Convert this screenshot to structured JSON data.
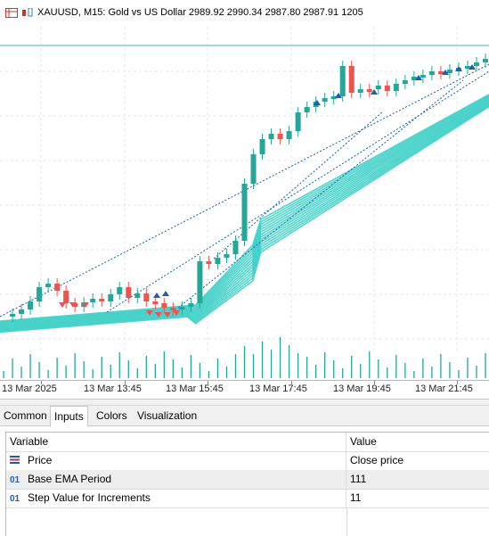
{
  "window": {
    "title": "XAUUSD, M15:  Gold vs US Dollar  2989.92 2990.34 2987.80 2987.91  1205",
    "accent_color": "#2e86ab"
  },
  "icons": {
    "window_icon": "grid-window-icon",
    "chart_type_icon": "candlestick-icon"
  },
  "time_axis": {
    "labels": [
      "13 Mar 2025",
      "13 Mar 13:45",
      "13 Mar 15:45",
      "13 Mar 17:45",
      "13 Mar 19:45",
      "13 Mar 21:45"
    ]
  },
  "tabs": [
    {
      "label": "Common",
      "active": false
    },
    {
      "label": "Inputs",
      "active": true
    },
    {
      "label": "Colors",
      "active": false
    },
    {
      "label": "Visualization",
      "active": false
    }
  ],
  "inputs": {
    "header": {
      "variable": "Variable",
      "value": "Value"
    },
    "rows": [
      {
        "icon": "price-icon",
        "variable": "Price",
        "value": "Close price"
      },
      {
        "icon": "01",
        "variable": "Base EMA Period",
        "value": "111"
      },
      {
        "icon": "01",
        "variable": "Step Value for Increments",
        "value": "11"
      }
    ]
  },
  "colors": {
    "bull_candle": "#26a69a",
    "bear_candle": "#ef5350",
    "ema_band": "#40d0c8",
    "signal_arrow": "#1a5fb4",
    "volume": "#26a69a"
  }
}
